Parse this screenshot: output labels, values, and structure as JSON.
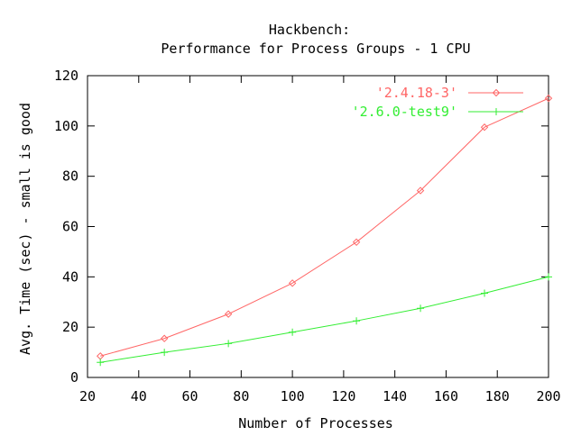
{
  "chart_data": {
    "type": "line",
    "title": [
      "Hackbench:",
      "Performance for Process Groups - 1 CPU"
    ],
    "xlabel": "Number of Processes",
    "ylabel": "Avg. Time (sec) - small is good",
    "xlim": [
      20,
      200
    ],
    "ylim": [
      0,
      120
    ],
    "xticks": [
      20,
      40,
      60,
      80,
      100,
      120,
      140,
      160,
      180,
      200
    ],
    "yticks": [
      0,
      20,
      40,
      60,
      80,
      100,
      120
    ],
    "grid": false,
    "legend_position": "top-right",
    "series": [
      {
        "name": "'2.4.18-3'",
        "color": "#ff6666",
        "marker": "diamond",
        "x": [
          25,
          50,
          75,
          100,
          125,
          150,
          175,
          200
        ],
        "y": [
          8.5,
          15.5,
          25.2,
          37.5,
          53.8,
          74.3,
          99.5,
          111
        ]
      },
      {
        "name": "'2.6.0-test9'",
        "color": "#33ee33",
        "marker": "plus",
        "x": [
          25,
          50,
          75,
          100,
          125,
          150,
          175,
          200
        ],
        "y": [
          6,
          10,
          13.5,
          18,
          22.5,
          27.5,
          33.5,
          40
        ]
      }
    ]
  }
}
